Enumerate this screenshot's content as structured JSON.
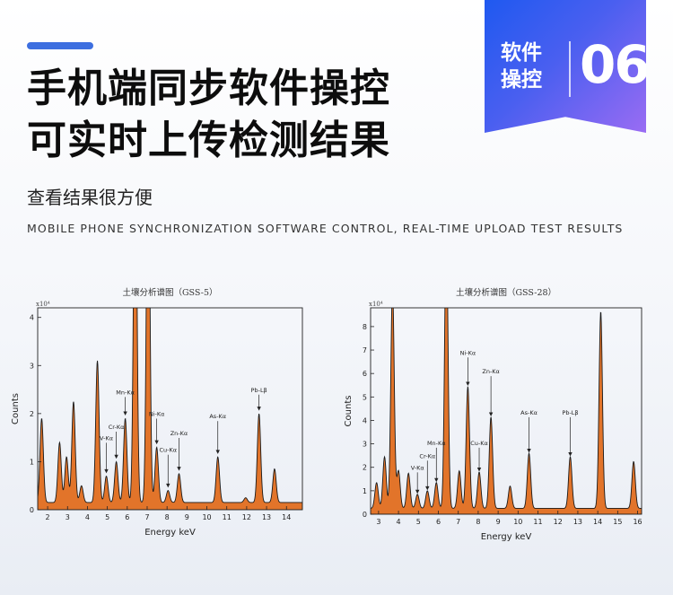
{
  "badge": {
    "label": "软件\n操控",
    "number": "06"
  },
  "headline": {
    "line1": "手机端同步软件操控",
    "line2": "可实时上传检测结果"
  },
  "subtitle": "查看结果很方便",
  "english_caption": "MOBILE PHONE SYNCHRONIZATION SOFTWARE CONTROL, REAL-TIME UPLOAD TEST RESULTS",
  "colors": {
    "accent": "#3d6fe0",
    "fill": "#e2742a",
    "line": "#1a1a1a"
  },
  "chart_data": [
    {
      "type": "area",
      "title": "土壤分析谱图（GSS-5）",
      "xlabel": "Energy keV",
      "ylabel": "Counts",
      "scale_label": "x10⁴",
      "xlim": [
        1.5,
        14.8
      ],
      "ylim": [
        0,
        4.2
      ],
      "xticks": [
        2,
        3,
        4,
        5,
        6,
        7,
        8,
        9,
        10,
        11,
        12,
        13,
        14
      ],
      "yticks": [
        0,
        1,
        2,
        3,
        4
      ],
      "baseline": 0.15,
      "peaks": [
        {
          "x": 1.7,
          "y": 1.75
        },
        {
          "x": 2.6,
          "y": 1.25
        },
        {
          "x": 2.95,
          "y": 0.95
        },
        {
          "x": 3.3,
          "y": 2.1
        },
        {
          "x": 3.7,
          "y": 0.35
        },
        {
          "x": 4.5,
          "y": 2.95
        },
        {
          "x": 4.95,
          "y": 0.55
        },
        {
          "x": 5.45,
          "y": 0.85
        },
        {
          "x": 5.9,
          "y": 1.75
        },
        {
          "x": 6.4,
          "y": 8.0
        },
        {
          "x": 7.05,
          "y": 8.0
        },
        {
          "x": 7.48,
          "y": 1.15
        },
        {
          "x": 8.05,
          "y": 0.25
        },
        {
          "x": 8.6,
          "y": 0.6
        },
        {
          "x": 10.55,
          "y": 0.95
        },
        {
          "x": 11.95,
          "y": 0.1
        },
        {
          "x": 12.62,
          "y": 1.85
        },
        {
          "x": 13.4,
          "y": 0.7
        }
      ],
      "annotations": [
        {
          "label": "V-Kα",
          "x": 4.95,
          "y": 0.75,
          "text_y": 1.45
        },
        {
          "label": "Cr-Kα",
          "x": 5.45,
          "y": 1.05,
          "text_y": 1.68
        },
        {
          "label": "Mn-Kα",
          "x": 5.9,
          "y": 1.95,
          "text_y": 2.4
        },
        {
          "label": "Ni-Kα",
          "x": 7.48,
          "y": 1.35,
          "text_y": 1.95
        },
        {
          "label": "Cu-Kα",
          "x": 8.05,
          "y": 0.45,
          "text_y": 1.2
        },
        {
          "label": "Zn-Kα",
          "x": 8.6,
          "y": 0.8,
          "text_y": 1.55
        },
        {
          "label": "As-Kα",
          "x": 10.55,
          "y": 1.15,
          "text_y": 1.9
        },
        {
          "label": "Pb-Lβ",
          "x": 12.62,
          "y": 2.05,
          "text_y": 2.45
        }
      ]
    },
    {
      "type": "area",
      "title": "土壤分析谱图（GSS-28）",
      "xlabel": "Energy keV",
      "ylabel": "Counts",
      "scale_label": "x10⁴",
      "xlim": [
        2.6,
        16.2
      ],
      "ylim": [
        0,
        8.8
      ],
      "xticks": [
        3,
        4,
        5,
        6,
        7,
        8,
        9,
        10,
        11,
        12,
        13,
        14,
        15,
        16
      ],
      "yticks": [
        0,
        1,
        2,
        3,
        4,
        5,
        6,
        7,
        8
      ],
      "baseline": 0.25,
      "peaks": [
        {
          "x": 2.9,
          "y": 1.1
        },
        {
          "x": 3.3,
          "y": 2.2
        },
        {
          "x": 3.7,
          "y": 9.5
        },
        {
          "x": 4.0,
          "y": 1.6
        },
        {
          "x": 4.5,
          "y": 1.5
        },
        {
          "x": 4.95,
          "y": 0.6
        },
        {
          "x": 5.45,
          "y": 0.75
        },
        {
          "x": 5.9,
          "y": 1.1
        },
        {
          "x": 6.4,
          "y": 12.0
        },
        {
          "x": 7.05,
          "y": 1.6
        },
        {
          "x": 7.48,
          "y": 5.2
        },
        {
          "x": 8.05,
          "y": 1.55
        },
        {
          "x": 8.64,
          "y": 3.9
        },
        {
          "x": 9.6,
          "y": 0.95
        },
        {
          "x": 10.55,
          "y": 2.35
        },
        {
          "x": 12.62,
          "y": 2.2
        },
        {
          "x": 14.15,
          "y": 8.4
        },
        {
          "x": 15.8,
          "y": 2.0
        }
      ],
      "annotations": [
        {
          "label": "V-Kα",
          "x": 4.95,
          "y": 0.85,
          "text_y": 1.9
        },
        {
          "label": "Cr-Kα",
          "x": 5.45,
          "y": 1.0,
          "text_y": 2.4
        },
        {
          "label": "Mn-Kα",
          "x": 5.9,
          "y": 1.35,
          "text_y": 2.95
        },
        {
          "label": "Ni-Kα",
          "x": 7.48,
          "y": 5.45,
          "text_y": 6.8
        },
        {
          "label": "Cu-Kα",
          "x": 8.05,
          "y": 1.8,
          "text_y": 2.95
        },
        {
          "label": "Zn-Kα",
          "x": 8.64,
          "y": 4.15,
          "text_y": 6.0
        },
        {
          "label": "As-Kα",
          "x": 10.55,
          "y": 2.6,
          "text_y": 4.25
        },
        {
          "label": "Pb-Lβ",
          "x": 12.62,
          "y": 2.45,
          "text_y": 4.25
        }
      ]
    }
  ]
}
